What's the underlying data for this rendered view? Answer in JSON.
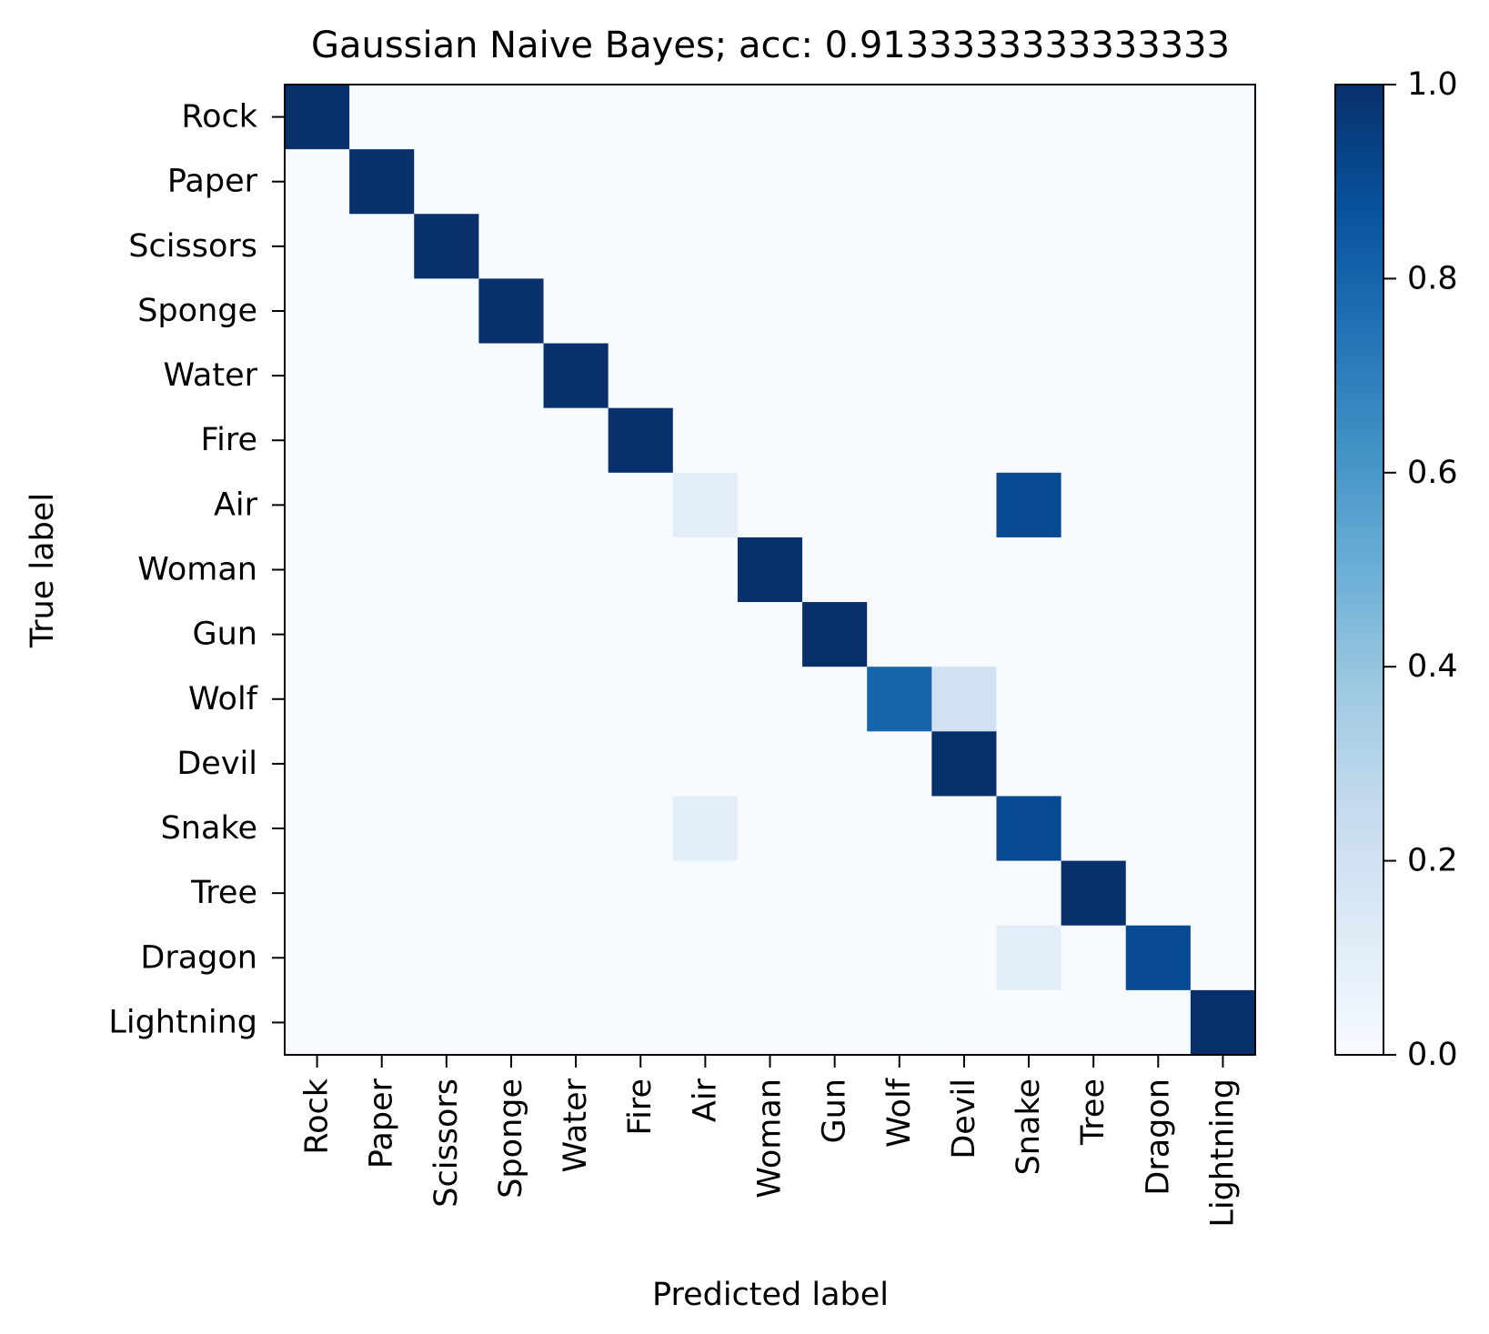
{
  "chart_data": {
    "type": "heatmap",
    "title": "Gaussian Naive Bayes; acc: 0.9133333333333333",
    "xlabel": "Predicted label",
    "ylabel": "True label",
    "x_categories": [
      "Rock",
      "Paper",
      "Scissors",
      "Sponge",
      "Water",
      "Fire",
      "Air",
      "Woman",
      "Gun",
      "Wolf",
      "Devil",
      "Snake",
      "Tree",
      "Dragon",
      "Lightning"
    ],
    "y_categories": [
      "Rock",
      "Paper",
      "Scissors",
      "Sponge",
      "Water",
      "Fire",
      "Air",
      "Woman",
      "Gun",
      "Wolf",
      "Devil",
      "Snake",
      "Tree",
      "Dragon",
      "Lightning"
    ],
    "values": [
      [
        1,
        0,
        0,
        0,
        0,
        0,
        0,
        0,
        0,
        0,
        0,
        0,
        0,
        0,
        0
      ],
      [
        0,
        1,
        0,
        0,
        0,
        0,
        0,
        0,
        0,
        0,
        0,
        0,
        0,
        0,
        0
      ],
      [
        0,
        0,
        1,
        0,
        0,
        0,
        0,
        0,
        0,
        0,
        0,
        0,
        0,
        0,
        0
      ],
      [
        0,
        0,
        0,
        1,
        0,
        0,
        0,
        0,
        0,
        0,
        0,
        0,
        0,
        0,
        0
      ],
      [
        0,
        0,
        0,
        0,
        1,
        0,
        0,
        0,
        0,
        0,
        0,
        0,
        0,
        0,
        0
      ],
      [
        0,
        0,
        0,
        0,
        0,
        1,
        0,
        0,
        0,
        0,
        0,
        0,
        0,
        0,
        0
      ],
      [
        0,
        0,
        0,
        0,
        0,
        0,
        0.1,
        0,
        0,
        0,
        0,
        0.9,
        0,
        0,
        0
      ],
      [
        0,
        0,
        0,
        0,
        0,
        0,
        0,
        1,
        0,
        0,
        0,
        0,
        0,
        0,
        0
      ],
      [
        0,
        0,
        0,
        0,
        0,
        0,
        0,
        0,
        1,
        0,
        0,
        0,
        0,
        0,
        0
      ],
      [
        0,
        0,
        0,
        0,
        0,
        0,
        0,
        0,
        0,
        0.8,
        0.2,
        0,
        0,
        0,
        0
      ],
      [
        0,
        0,
        0,
        0,
        0,
        0,
        0,
        0,
        0,
        0,
        1,
        0,
        0,
        0,
        0
      ],
      [
        0,
        0,
        0,
        0,
        0,
        0,
        0.1,
        0,
        0,
        0,
        0,
        0.9,
        0,
        0,
        0
      ],
      [
        0,
        0,
        0,
        0,
        0,
        0,
        0,
        0,
        0,
        0,
        0,
        0,
        1,
        0,
        0
      ],
      [
        0,
        0,
        0,
        0,
        0,
        0,
        0,
        0,
        0,
        0,
        0,
        0.1,
        0,
        0.9,
        0
      ],
      [
        0,
        0,
        0,
        0,
        0,
        0,
        0,
        0,
        0,
        0,
        0,
        0,
        0,
        0,
        1
      ]
    ],
    "colorbar": {
      "range": [
        0.0,
        1.0
      ],
      "ticks": [
        "0.0",
        "0.2",
        "0.4",
        "0.6",
        "0.8",
        "1.0"
      ],
      "colormap": "Blues",
      "color_low": "#f7fbff",
      "color_high": "#08306b"
    },
    "grid": false,
    "legend": "none"
  }
}
